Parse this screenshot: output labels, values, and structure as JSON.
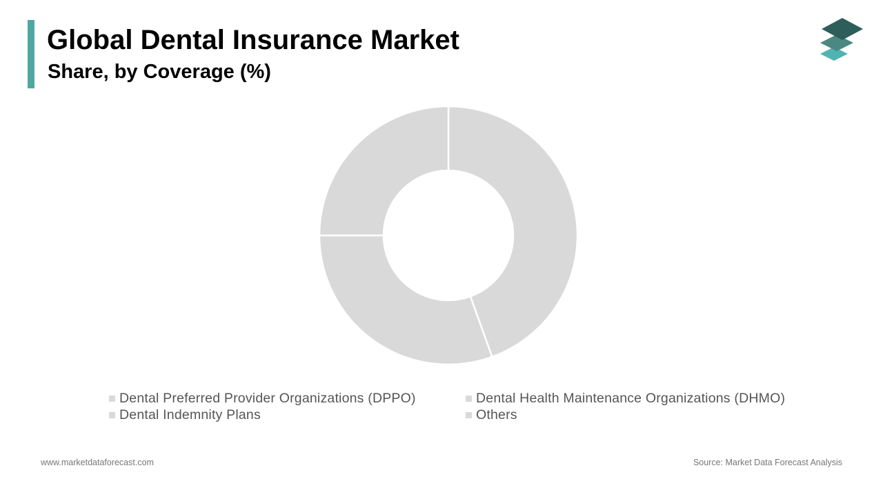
{
  "title": "Global Dental Insurance Market",
  "subtitle": "Share, by Coverage (%)",
  "footer": {
    "url": "www.marketdataforecast.com",
    "source": "Source: Market Data Forecast Analysis"
  },
  "logo": {
    "icon": "stacked-layers-logo",
    "colors": [
      "#2e5e5a",
      "#4b8783",
      "#4fb4b1"
    ]
  },
  "colors": {
    "accent": "#4fa7a4",
    "slice": "#d9d9d9",
    "separator": "#ffffff"
  },
  "chart_data": {
    "type": "pie",
    "donut": true,
    "title": "Global Dental Insurance Market",
    "subtitle": "Share, by Coverage (%)",
    "categories": [
      "Dental Preferred Provider Organizations (DPPO)",
      "Dental Health Maintenance Organizations (DHMO)",
      "Dental Indemnity Plans",
      "Others"
    ],
    "values": [
      44.5,
      30.5,
      25,
      0
    ],
    "legend": "bottom"
  }
}
